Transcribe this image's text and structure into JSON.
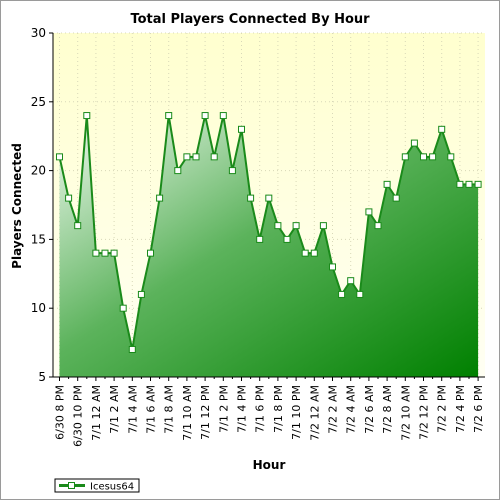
{
  "chart_data": {
    "type": "area",
    "title": "Total Players Connected By Hour",
    "xlabel": "Hour",
    "ylabel": "Players Connected",
    "ylim": [
      5,
      30
    ],
    "yticks": [
      5,
      10,
      15,
      20,
      25,
      30
    ],
    "grid": true,
    "legend_position": "bottom-left",
    "x_tick_labels": [
      "6/30 8 PM",
      "6/30 10 PM",
      "7/1 12 AM",
      "7/1 2 AM",
      "7/1 4 AM",
      "7/1 6 AM",
      "7/1 8 AM",
      "7/1 10 AM",
      "7/1 12 PM",
      "7/1 2 PM",
      "7/1 4 PM",
      "7/1 6 PM",
      "7/1 8 PM",
      "7/1 10 PM",
      "7/2 12 AM",
      "7/2 2 AM",
      "7/2 4 AM",
      "7/2 6 AM",
      "7/2 8 AM",
      "7/2 10 AM",
      "7/2 12 PM",
      "7/2 2 PM",
      "7/2 4 PM",
      "7/2 6 PM"
    ],
    "series": [
      {
        "name": "Icesus64",
        "color": "#1a8a1a",
        "values": [
          21,
          18,
          16,
          24,
          14,
          14,
          14,
          10,
          7,
          11,
          14,
          18,
          24,
          20,
          21,
          21,
          24,
          21,
          24,
          20,
          23,
          18,
          15,
          18,
          16,
          15,
          16,
          14,
          14,
          16,
          13,
          11,
          12,
          11,
          17,
          16,
          19,
          18,
          21,
          22,
          21,
          21,
          23,
          21,
          19,
          19,
          19
        ]
      }
    ]
  }
}
